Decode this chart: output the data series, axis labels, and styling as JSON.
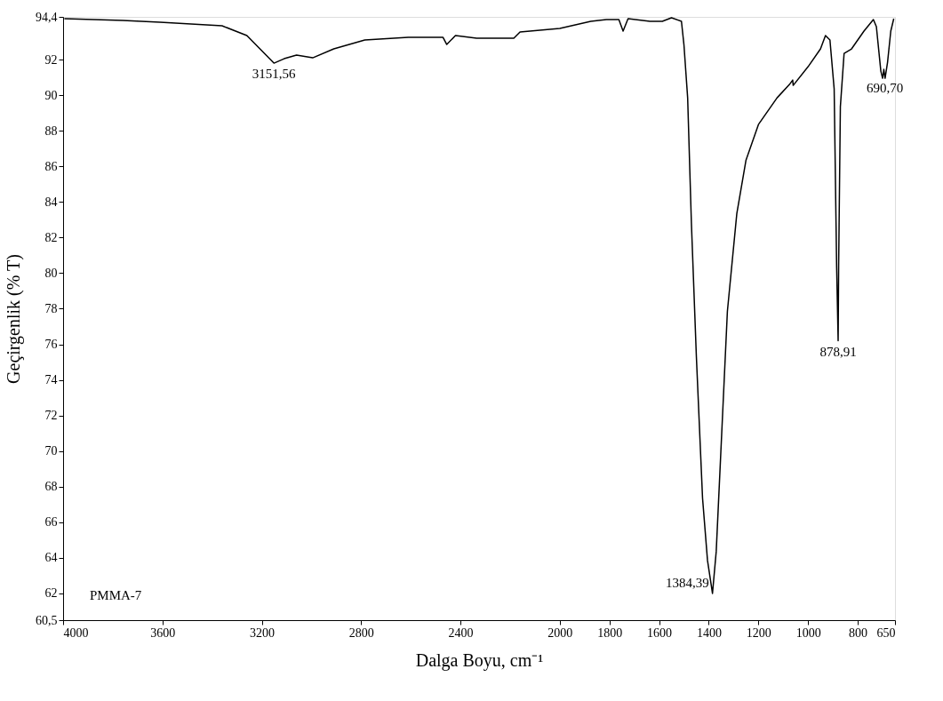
{
  "chart_data": {
    "type": "line",
    "xlabel": "Dalga Boyu, cm⁻¹",
    "ylabel": "Geçirgenlik (% T)",
    "xlim": [
      4000,
      650
    ],
    "ylim": [
      60.5,
      94.4
    ],
    "xticks": [
      4000,
      3600,
      3200,
      2800,
      2400,
      2000,
      1800,
      1600,
      1400,
      1200,
      1000,
      800,
      650
    ],
    "yticks": [
      {
        "value": 60.5,
        "label": "60,5"
      },
      62,
      64,
      66,
      68,
      70,
      72,
      74,
      76,
      78,
      80,
      82,
      84,
      86,
      88,
      90,
      92,
      {
        "value": 94.4,
        "label": "94,4"
      }
    ],
    "grid": false,
    "marker": "none",
    "line_style": "solid",
    "series": [
      {
        "color": "#000000",
        "x": [
          3995,
          3760,
          3610,
          3360,
          3260,
          3151,
          3110,
          3060,
          2995,
          2910,
          2785,
          2610,
          2470,
          2455,
          2420,
          2335,
          2185,
          2160,
          2000,
          1875,
          1812,
          1762,
          1745,
          1725,
          1637,
          1587,
          1550,
          1510,
          1500,
          1485,
          1470,
          1450,
          1425,
          1405,
          1385,
          1370,
          1350,
          1325,
          1287,
          1250,
          1200,
          1125,
          1075,
          1062,
          1060,
          1000,
          950,
          930,
          912,
          895,
          885,
          879,
          877,
          870,
          855,
          825,
          775,
          737,
          725,
          707,
          700,
          695,
          690,
          680,
          667,
          655
        ],
        "values": [
          94.3,
          94.2,
          94.1,
          93.9,
          93.35,
          91.8,
          92.05,
          92.25,
          92.1,
          92.6,
          93.1,
          93.25,
          93.25,
          92.85,
          93.35,
          93.2,
          93.2,
          93.55,
          93.75,
          94.15,
          94.25,
          94.25,
          93.6,
          94.3,
          94.15,
          94.15,
          94.35,
          94.15,
          92.85,
          89.85,
          82.85,
          75.35,
          67.35,
          63.85,
          62.0,
          64.35,
          70.35,
          77.85,
          83.35,
          86.35,
          88.35,
          89.85,
          90.6,
          90.85,
          90.55,
          91.6,
          92.6,
          93.35,
          93.1,
          90.35,
          80.35,
          76.2,
          80.35,
          89.35,
          92.35,
          92.6,
          93.6,
          94.25,
          93.85,
          91.35,
          90.95,
          91.45,
          90.95,
          91.85,
          93.6,
          94.3
        ]
      }
    ],
    "annotations": [
      {
        "text": "3151,56",
        "x": 3151.56,
        "y": 91.8
      },
      {
        "text": "1384,39",
        "x": 1384.39,
        "y": 62.0
      },
      {
        "text": "878,91",
        "x": 878.91,
        "y": 76.2
      },
      {
        "text": "690,70",
        "x": 690.7,
        "y": 91.0
      },
      "PMMA-7"
    ]
  }
}
